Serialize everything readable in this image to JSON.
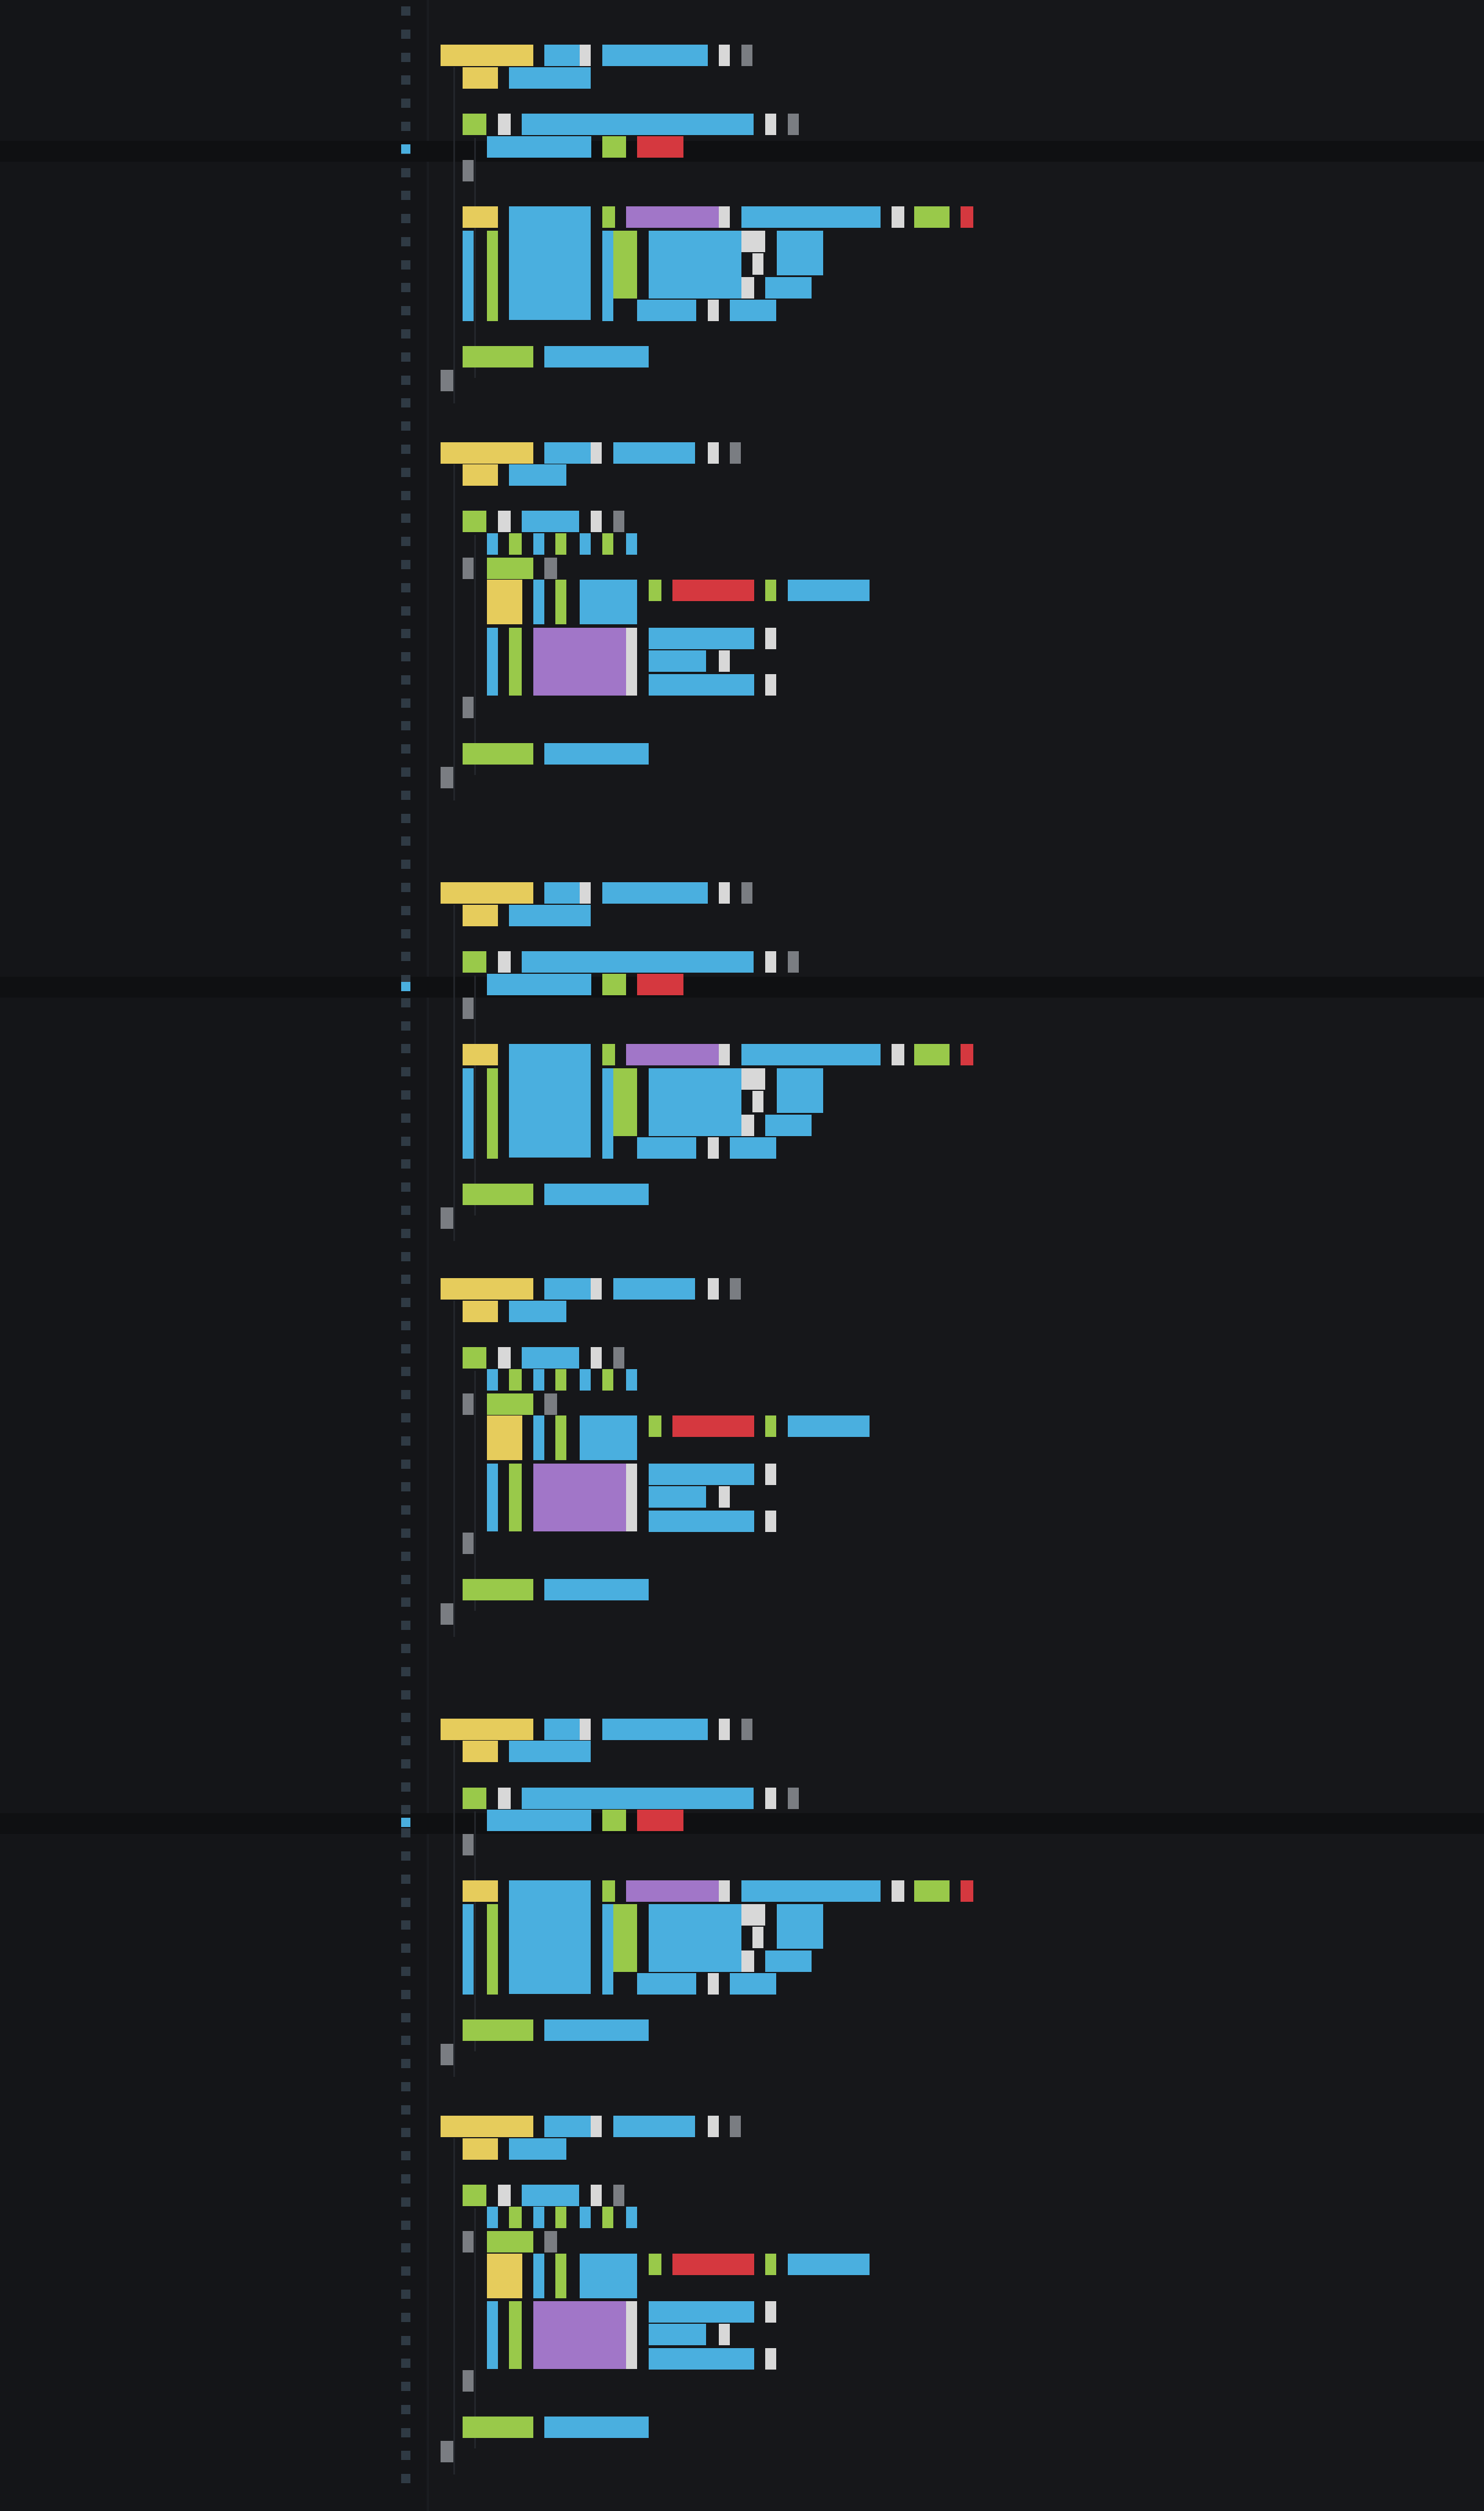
{
  "editor": {
    "theme_colors": {
      "background": "#16171a",
      "gutter": "#141518",
      "current_line": "#0f1012",
      "line_marker": "#2f3a44",
      "line_marker_active": "#4aafdf",
      "keyword": "#e6cc5c",
      "identifier": "#4aafdf",
      "string": "#99c94a",
      "number": "#d5383f",
      "type": "#a176c8",
      "punctuation": "#d8d8d8",
      "comment": "#7a7d82"
    },
    "icons": [
      "line-marker-icon"
    ]
  }
}
